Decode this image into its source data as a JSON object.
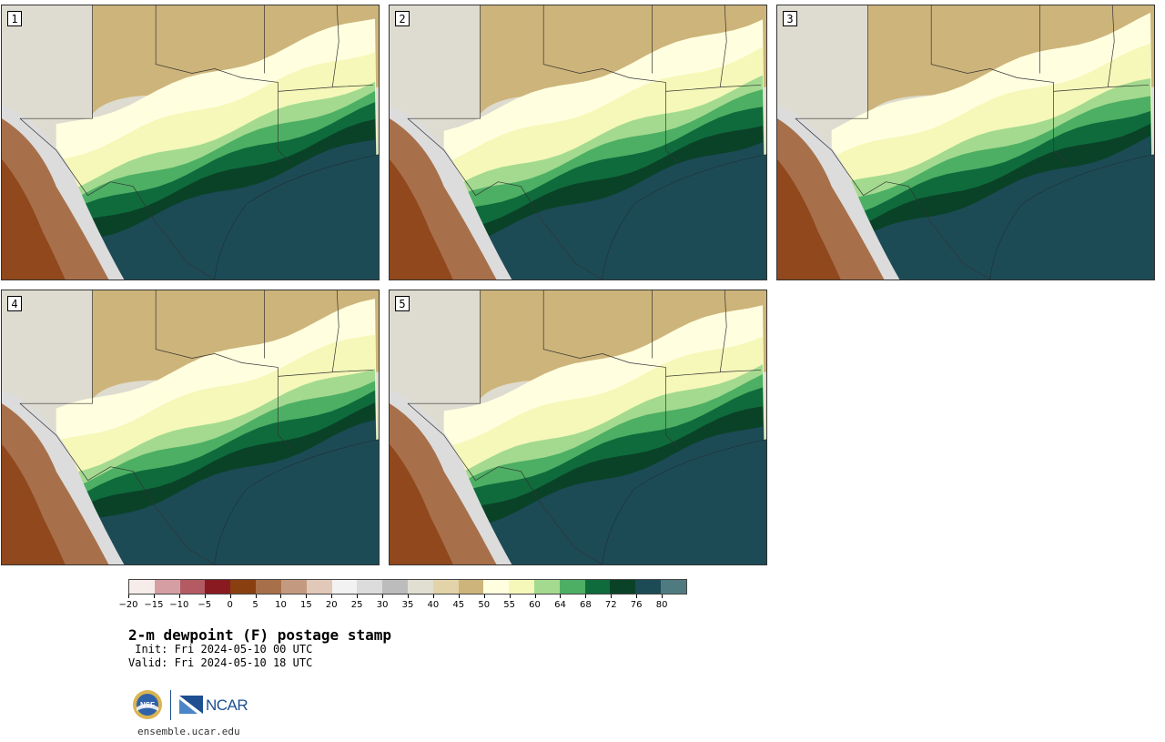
{
  "panels": [
    {
      "id": "p1",
      "label": "1"
    },
    {
      "id": "p2",
      "label": "2"
    },
    {
      "id": "p3",
      "label": "3"
    },
    {
      "id": "p4",
      "label": "4"
    },
    {
      "id": "p5",
      "label": "5"
    }
  ],
  "colorbar": {
    "colors": [
      "#f6ece9",
      "#d49ea3",
      "#b35a62",
      "#8a1a22",
      "#8a3f10",
      "#a8704a",
      "#c39a80",
      "#e2c8b8",
      "#f2f2f2",
      "#dcdcdc",
      "#bcbcbc",
      "#e0dfd2",
      "#e2d3a8",
      "#cdb47a",
      "#ffffe0",
      "#f5f8b8",
      "#a3da8f",
      "#4caf63",
      "#0f6b3c",
      "#0a4228",
      "#1c4b56",
      "#4f7b80"
    ],
    "ticks": [
      "−20",
      "−15",
      "−10",
      "−5",
      "0",
      "5",
      "10",
      "15",
      "20",
      "25",
      "30",
      "35",
      "40",
      "45",
      "50",
      "55",
      "60",
      "64",
      "68",
      "72",
      "76",
      "80"
    ]
  },
  "title": "2-m dewpoint (F) postage stamp",
  "init": " Init: Fri 2024-05-10 00 UTC",
  "valid": "Valid: Fri 2024-05-10 18 UTC",
  "logos": {
    "nsf": "NSF",
    "ncar": "NCAR"
  },
  "url": "ensemble.ucar.edu"
}
